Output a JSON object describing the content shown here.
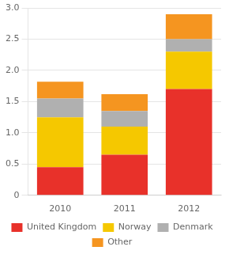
{
  "chart_data": {
    "type": "bar",
    "stacked": true,
    "categories": [
      "2010",
      "2011",
      "2012"
    ],
    "series": [
      {
        "name": "United Kingdom",
        "color": "#e8312a",
        "values": [
          0.45,
          0.65,
          1.7
        ]
      },
      {
        "name": "Norway",
        "color": "#f5c800",
        "values": [
          0.8,
          0.45,
          0.6
        ]
      },
      {
        "name": "Denmark",
        "color": "#b0b0b0",
        "values": [
          0.3,
          0.25,
          0.2
        ]
      },
      {
        "name": "Other",
        "color": "#f59520",
        "values": [
          0.27,
          0.27,
          0.4
        ]
      }
    ],
    "ylim": [
      0,
      3.0
    ],
    "yticks": [
      0,
      0.5,
      {
        "value": 1.0,
        "label": "1.0"
      },
      1.5,
      {
        "value": 2.0,
        "label": "2.0"
      },
      2.5,
      {
        "value": 3.0,
        "label": "3.0"
      }
    ],
    "grid": true,
    "legend": "bottom"
  }
}
